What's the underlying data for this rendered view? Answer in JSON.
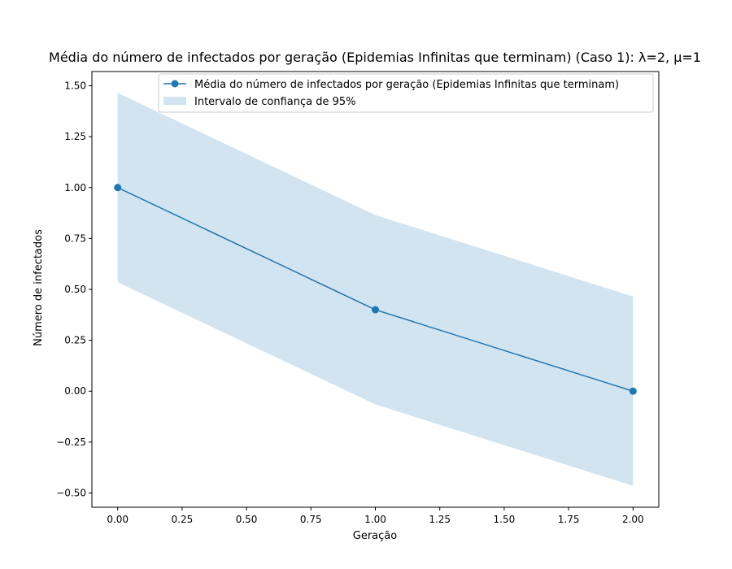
{
  "chart_data": {
    "type": "line",
    "title": "Média do número de infectados por geração (Epidemias Infinitas que terminam) (Caso 1): λ=2, μ=1",
    "xlabel": "Geração",
    "ylabel": "Número de infectados",
    "xlim": [
      -0.1,
      2.1
    ],
    "ylim": [
      -0.57,
      1.57
    ],
    "xticks": [
      0.0,
      0.25,
      0.5,
      0.75,
      1.0,
      1.25,
      1.5,
      1.75,
      2.0
    ],
    "xtick_labels": [
      "0.00",
      "0.25",
      "0.50",
      "0.75",
      "1.00",
      "1.25",
      "1.50",
      "1.75",
      "2.00"
    ],
    "yticks": [
      -0.5,
      -0.25,
      0.0,
      0.25,
      0.5,
      0.75,
      1.0,
      1.25,
      1.5
    ],
    "ytick_labels": [
      "−0.50",
      "−0.25",
      "0.00",
      "0.25",
      "0.50",
      "0.75",
      "1.00",
      "1.25",
      "1.50"
    ],
    "grid": false,
    "legend_position": "top-right",
    "series": [
      {
        "name": "Média do número de infectados por geração (Epidemias Infinitas que terminam)",
        "x": [
          0,
          1,
          2
        ],
        "y": [
          1.0,
          0.4,
          0.0
        ],
        "color": "#1f77b4",
        "marker": "circle"
      }
    ],
    "band": {
      "name": "Intervalo de confiança de 95%",
      "x": [
        0,
        1,
        2
      ],
      "lower": [
        0.535,
        -0.065,
        -0.465
      ],
      "upper": [
        1.465,
        0.865,
        0.465
      ],
      "color": "#1f77b4",
      "opacity": 0.2
    }
  }
}
